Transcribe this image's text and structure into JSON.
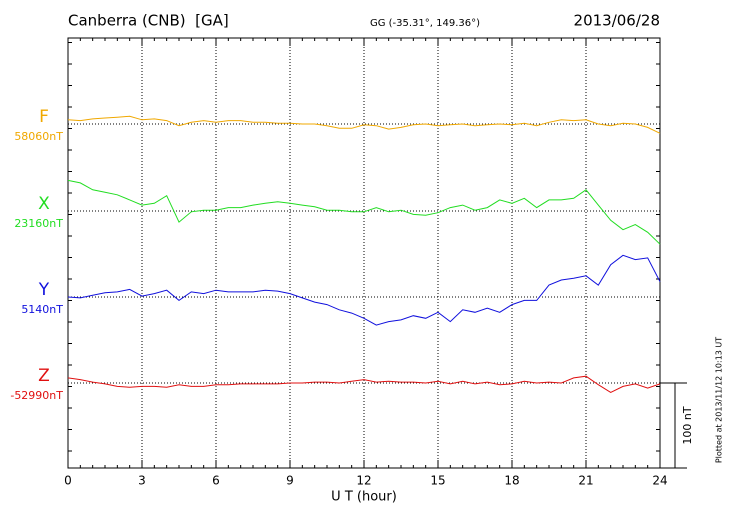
{
  "chart_data": {
    "type": "line",
    "title": "Canberra (CNB)  [GA]",
    "subtitle": "GG (-35.31°, 149.36°)",
    "date": "2013/06/28",
    "x_label": "U T (hour)",
    "plotted_note": "Plotted at 2013/11/12 10:13 UT",
    "scale_bar": {
      "value": 100,
      "label": "100 nT"
    },
    "xlim": [
      0,
      24
    ],
    "xticks": [
      0,
      3,
      6,
      9,
      12,
      15,
      18,
      21,
      24
    ],
    "x": [
      0,
      0.5,
      1,
      1.5,
      2,
      2.5,
      3,
      3.5,
      4,
      4.5,
      5,
      5.5,
      6,
      6.5,
      7,
      7.5,
      8,
      8.5,
      9,
      9.5,
      10,
      10.5,
      11,
      11.5,
      12,
      12.5,
      13,
      13.5,
      14,
      14.5,
      15,
      15.5,
      16,
      16.5,
      17,
      17.5,
      18,
      18.5,
      19,
      19.5,
      20,
      20.5,
      21,
      21.5,
      22,
      22.5,
      23,
      23.5,
      24
    ],
    "series": [
      {
        "name": "F",
        "color": "#f0a800",
        "baseline": 58060,
        "baseline_label": "58060nT",
        "values": [
          58065,
          58064,
          58066,
          58067,
          58068,
          58069,
          58065,
          58066,
          58064,
          58058,
          58062,
          58064,
          58062,
          58064,
          58064,
          58062,
          58062,
          58061,
          58061,
          58060,
          58060,
          58058,
          58055,
          58055,
          58059,
          58058,
          58054,
          58056,
          58059,
          58060,
          58058,
          58059,
          58060,
          58058,
          58059,
          58060,
          58059,
          58061,
          58058,
          58062,
          58065,
          58064,
          58065,
          58060,
          58058,
          58061,
          58060,
          58056,
          58049
        ]
      },
      {
        "name": "X",
        "color": "#22dd22",
        "baseline": 23160,
        "baseline_label": "23160nT",
        "values": [
          23196,
          23193,
          23185,
          23182,
          23179,
          23173,
          23167,
          23169,
          23178,
          23147,
          23159,
          23161,
          23161,
          23164,
          23164,
          23167,
          23169,
          23171,
          23169,
          23167,
          23165,
          23161,
          23161,
          23159,
          23159,
          23164,
          23159,
          23161,
          23156,
          23155,
          23158,
          23164,
          23167,
          23161,
          23164,
          23173,
          23169,
          23175,
          23164,
          23173,
          23173,
          23175,
          23185,
          23167,
          23149,
          23138,
          23144,
          23135,
          23121
        ]
      },
      {
        "name": "Y",
        "color": "#1010dd",
        "baseline": 5140,
        "baseline_label": "5140nT",
        "values": [
          5140,
          5139,
          5142,
          5145,
          5146,
          5149,
          5141,
          5144,
          5148,
          5136,
          5146,
          5144,
          5148,
          5146,
          5146,
          5146,
          5148,
          5147,
          5144,
          5139,
          5134,
          5131,
          5125,
          5121,
          5115,
          5107,
          5111,
          5113,
          5118,
          5115,
          5122,
          5111,
          5125,
          5122,
          5127,
          5122,
          5131,
          5136,
          5136,
          5154,
          5160,
          5162,
          5165,
          5154,
          5178,
          5189,
          5184,
          5186,
          5158
        ]
      },
      {
        "name": "Z",
        "color": "#e01010",
        "baseline": -52990,
        "baseline_label": "-52990nT",
        "values": [
          -52984,
          -52986,
          -52989,
          -52991,
          -52994,
          -52995,
          -52994,
          -52994,
          -52995,
          -52992,
          -52994,
          -52994,
          -52992,
          -52992,
          -52991,
          -52991,
          -52991,
          -52991,
          -52990,
          -52990,
          -52989,
          -52989,
          -52990,
          -52988,
          -52986,
          -52989,
          -52988,
          -52989,
          -52989,
          -52990,
          -52988,
          -52991,
          -52988,
          -52991,
          -52989,
          -52992,
          -52991,
          -52988,
          -52990,
          -52989,
          -52990,
          -52984,
          -52982,
          -52992,
          -53001,
          -52994,
          -52991,
          -52996,
          -52991
        ]
      }
    ]
  }
}
